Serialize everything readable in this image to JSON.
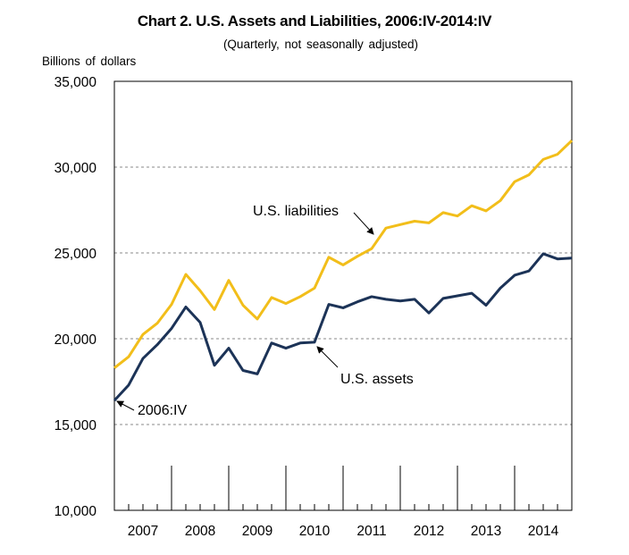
{
  "chart_data": {
    "type": "line",
    "title": "Chart 2. U.S. Assets and Liabilities, 2006:IV-2014:IV",
    "subtitle": "(Quarterly,  not seasonally  adjusted)",
    "ylabel": "Billions  of dollars",
    "xlabel": "",
    "ylim": [
      10000,
      35000
    ],
    "yticks": [
      10000,
      15000,
      20000,
      25000,
      30000,
      35000
    ],
    "ytick_labels": [
      "10,000",
      "15,000",
      "20,000",
      "25,000",
      "30,000",
      "35,000"
    ],
    "grid": "horizontal dashed",
    "x": [
      "2006:IV",
      "2007:I",
      "2007:II",
      "2007:III",
      "2007:IV",
      "2008:I",
      "2008:II",
      "2008:III",
      "2008:IV",
      "2009:I",
      "2009:II",
      "2009:III",
      "2009:IV",
      "2010:I",
      "2010:II",
      "2010:III",
      "2010:IV",
      "2011:I",
      "2011:II",
      "2011:III",
      "2011:IV",
      "2012:I",
      "2012:II",
      "2012:III",
      "2012:IV",
      "2013:I",
      "2013:II",
      "2013:III",
      "2013:IV",
      "2014:I",
      "2014:II",
      "2014:III",
      "2014:IV"
    ],
    "year_labels": [
      "2007",
      "2008",
      "2009",
      "2010",
      "2011",
      "2012",
      "2013",
      "2014"
    ],
    "series": [
      {
        "name": "U.S. liabilities",
        "color": "#F2BE1A",
        "values": [
          18300,
          18950,
          20250,
          20900,
          22000,
          23750,
          22800,
          21700,
          23400,
          21950,
          21150,
          22400,
          22050,
          22450,
          22950,
          24750,
          24300,
          24800,
          25250,
          26450,
          26650,
          26850,
          26750,
          27350,
          27150,
          27750,
          27450,
          28050,
          29150,
          29550,
          30450,
          30750,
          31550
        ]
      },
      {
        "name": "U.S. assets",
        "color": "#1C3357",
        "values": [
          16400,
          17300,
          18850,
          19650,
          20600,
          21850,
          20950,
          18450,
          19450,
          18150,
          17950,
          19750,
          19450,
          19750,
          19800,
          22000,
          21800,
          22150,
          22450,
          22300,
          22200,
          22300,
          21500,
          22350,
          22500,
          22650,
          21950,
          22950,
          23700,
          23950,
          24950,
          24650,
          24700
        ]
      }
    ],
    "annotations": [
      {
        "text": "U.S. liabilities",
        "target": "liabilities"
      },
      {
        "text": "U.S. assets",
        "target": "assets"
      },
      {
        "text": "2006:IV",
        "target": "start"
      }
    ]
  }
}
